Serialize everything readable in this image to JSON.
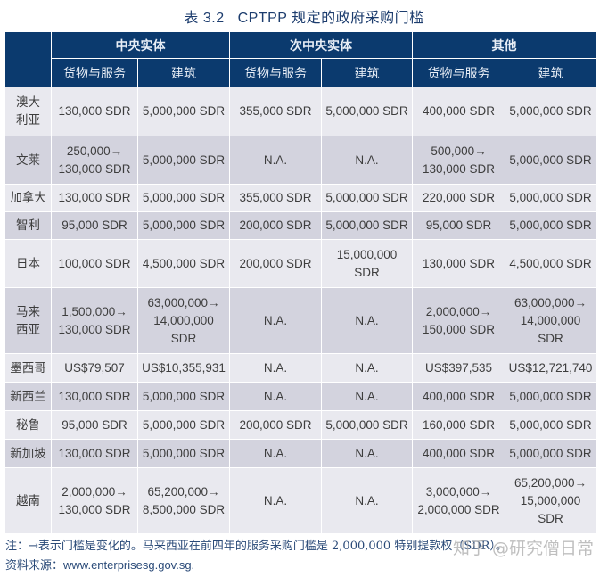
{
  "title": {
    "number": "表 3.2",
    "text": "CPTPP 规定的政府采购门槛"
  },
  "table": {
    "groups": [
      "中央实体",
      "次中央实体",
      "其他"
    ],
    "subheaders": [
      "货物与服务",
      "建筑",
      "货物与服务",
      "建筑",
      "货物与服务",
      "建筑"
    ],
    "rows": [
      {
        "country": "澳大\n利亚",
        "cells": [
          "130,000 SDR",
          "5,000,000 SDR",
          "355,000 SDR",
          "5,000,000 SDR",
          "400,000 SDR",
          "5,000,000 SDR"
        ]
      },
      {
        "country": "文莱",
        "cells": [
          "250,000→\n130,000 SDR",
          "5,000,000 SDR",
          "N.A.",
          "N.A.",
          "500,000→\n130,000 SDR",
          "5,000,000 SDR"
        ]
      },
      {
        "country": "加拿大",
        "cells": [
          "130,000 SDR",
          "5,000,000 SDR",
          "355,000 SDR",
          "5,000,000 SDR",
          "220,000 SDR",
          "5,000,000 SDR"
        ]
      },
      {
        "country": "智利",
        "cells": [
          "95,000 SDR",
          "5,000,000 SDR",
          "200,000 SDR",
          "5,000,000 SDR",
          "95,000 SDR",
          "5,000,000 SDR"
        ]
      },
      {
        "country": "日本",
        "cells": [
          "100,000 SDR",
          "4,500,000 SDR",
          "200,000 SDR",
          "15,000,000\nSDR",
          "130,000 SDR",
          "4,500,000 SDR"
        ]
      },
      {
        "country": "马来\n西亚",
        "cells": [
          "1,500,000→\n130,000 SDR",
          "63,000,000→\n14,000,000\nSDR",
          "N.A.",
          "N.A.",
          "2,000,000→\n150,000 SDR",
          "63,000,000→\n14,000,000\nSDR"
        ]
      },
      {
        "country": "墨西哥",
        "cells": [
          "US$79,507",
          "US$10,355,931",
          "N.A.",
          "N.A.",
          "US$397,535",
          "US$12,721,740"
        ]
      },
      {
        "country": "新西兰",
        "cells": [
          "130,000 SDR",
          "5,000,000 SDR",
          "N.A.",
          "N.A.",
          "400,000 SDR",
          "5,000,000 SDR"
        ]
      },
      {
        "country": "秘鲁",
        "cells": [
          "95,000 SDR",
          "5,000,000 SDR",
          "200,000 SDR",
          "5,000,000 SDR",
          "160,000 SDR",
          "5,000,000 SDR"
        ]
      },
      {
        "country": "新加坡",
        "cells": [
          "130,000 SDR",
          "5,000,000 SDR",
          "N.A.",
          "N.A.",
          "400,000 SDR",
          "5,000,000 SDR"
        ]
      },
      {
        "country": "越南",
        "cells": [
          "2,000,000→\n130,000 SDR",
          "65,200,000→\n8,500,000 SDR",
          "N.A.",
          "N.A.",
          "3,000,000→\n2,000,000 SDR",
          "65,200,000→\n15,000,000\nSDR"
        ]
      }
    ]
  },
  "footer": {
    "note": "注：→表示门槛是变化的。马来西亚在前四年的服务采购门槛是 2,000,000 特别提款权（SDR）。",
    "source_label": "资料来源：",
    "source_value": "www.enterprisesg.gov.sg.",
    "watermark": "知乎 @研究僧日常"
  },
  "colors": {
    "header_bg": "#0b3a6e",
    "row_light": "#e9e9ef",
    "row_dark": "#d3d3de",
    "title_text": "#1d3d6e"
  }
}
